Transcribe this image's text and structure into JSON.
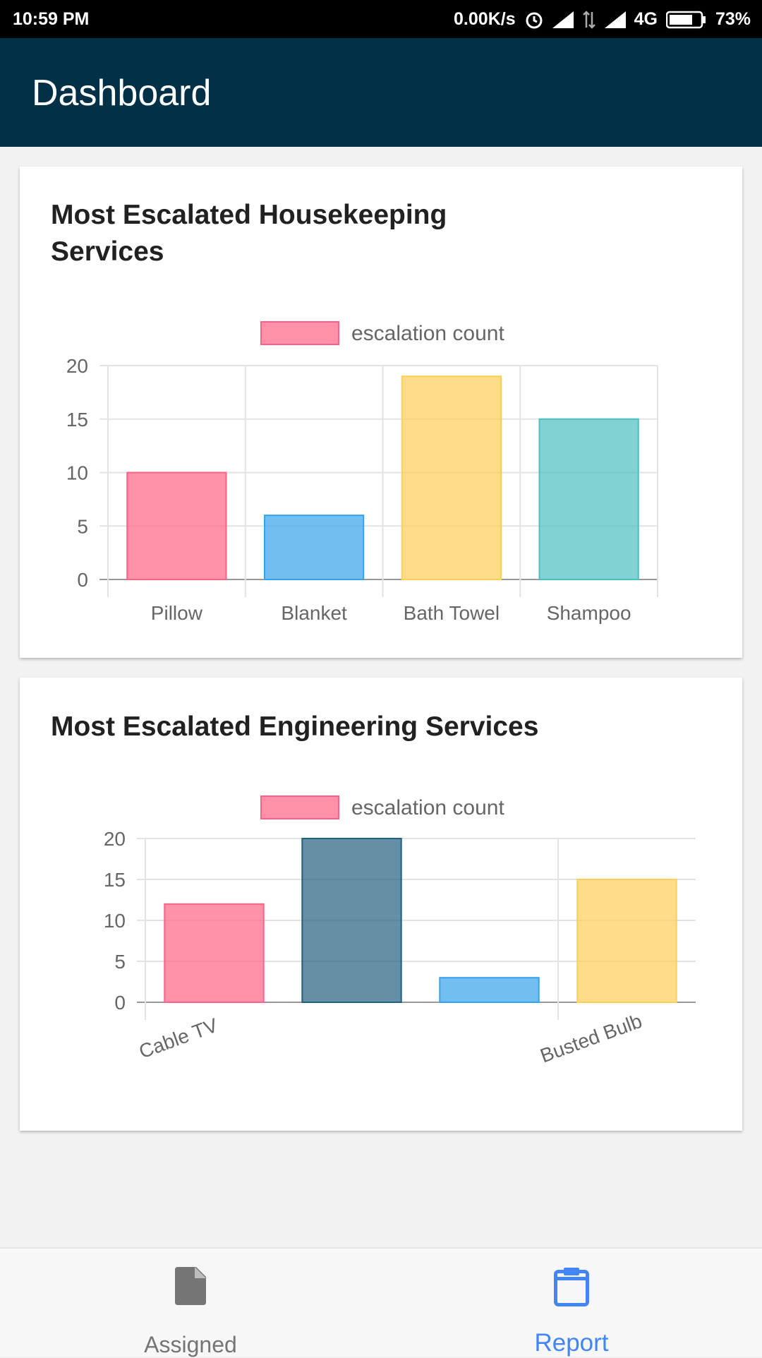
{
  "status_bar": {
    "time": "10:59 PM",
    "net_speed": "0.00K/s",
    "network": "4G",
    "battery": "73%"
  },
  "app_bar": {
    "title": "Dashboard"
  },
  "colors": {
    "app_bar": "#023047",
    "nav_active": "#4285f4",
    "nav_inactive": "#757575"
  },
  "cards": [
    {
      "title": "Most Escalated Housekeeping Services"
    },
    {
      "title": "Most Escalated Engineering Services"
    }
  ],
  "chart_data": [
    {
      "type": "bar",
      "title": "Most Escalated Housekeeping Services",
      "legend": {
        "label": "escalation count",
        "position": "top"
      },
      "categories": [
        "Pillow",
        "Blanket",
        "Bath Towel",
        "Shampoo"
      ],
      "series": [
        {
          "name": "escalation count",
          "values": [
            10,
            6,
            19,
            15
          ]
        }
      ],
      "bar_colors": [
        "#ff6384",
        "#36a2eb",
        "#ffce56",
        "#4bc0c0"
      ],
      "yticks": [
        0,
        5,
        10,
        15,
        20
      ],
      "ylim": [
        0,
        20
      ],
      "grid": true
    },
    {
      "type": "bar",
      "title": "Most Escalated Engineering Services",
      "legend": {
        "label": "escalation count",
        "position": "top"
      },
      "categories": [
        "Cable TV",
        "",
        "",
        "Busted Bulb"
      ],
      "series": [
        {
          "name": "escalation count",
          "values": [
            12,
            20,
            3,
            15
          ]
        }
      ],
      "bar_colors": [
        "#ff6384",
        "#23607f",
        "#36a2eb",
        "#ffce56"
      ],
      "yticks": [
        0,
        5,
        10,
        15,
        20
      ],
      "ylim": [
        0,
        20
      ],
      "grid": true,
      "xtick_rotation": -20
    }
  ],
  "bottom_nav": {
    "items": [
      {
        "label": "Assigned",
        "icon": "file-icon",
        "active": false
      },
      {
        "label": "Report",
        "icon": "clipboard-icon",
        "active": true
      }
    ]
  }
}
